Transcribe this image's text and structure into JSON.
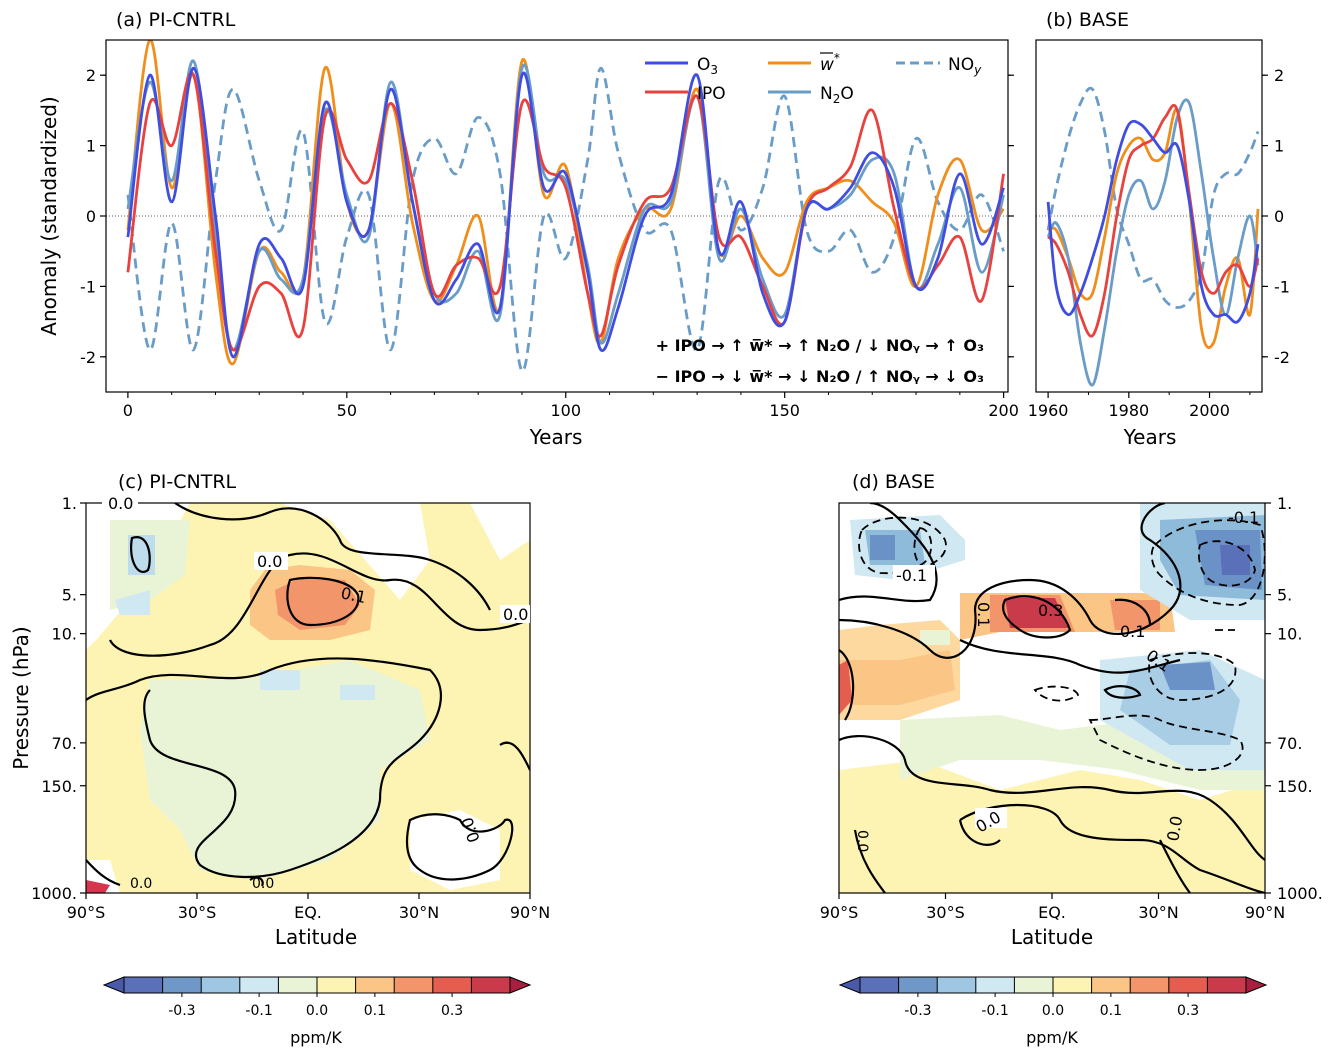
{
  "panels": {
    "a": {
      "label": "(a)  PI-CNTRL"
    },
    "b": {
      "label": "(b)  BASE"
    },
    "c": {
      "label": "(c)  PI-CNTRL"
    },
    "d": {
      "label": "(d)  BASE"
    }
  },
  "legend": {
    "o3": "O",
    "o3_sub": "3",
    "ipo": "IPO",
    "w": "w",
    "w_sup": "*",
    "n2o_a": "N",
    "n2o_sub": "2",
    "n2o_b": "O",
    "noy": "NO",
    "noy_sub": "y"
  },
  "annotation": {
    "line1": "+ IPO  →  ↑ w̅*  →  ↑ N₂O / ↓ NOᵧ  →  ↑ O₃",
    "line2": "− IPO  →  ↓ w̅*  →  ↓ N₂O / ↑ NOᵧ  →  ↓ O₃"
  },
  "colors": {
    "o3": "#3f4ee0",
    "ipo": "#e8423f",
    "w": "#f08e1c",
    "n2o": "#6a9cc8",
    "noy": "#6a9cc8"
  },
  "chart_data": [
    {
      "type": "line",
      "panel": "a",
      "title": "(a)  PI-CNTRL",
      "xlabel": "Years",
      "ylabel": "Anomaly (standardized)",
      "xlim": [
        -5,
        201
      ],
      "ylim": [
        -2.5,
        2.5
      ],
      "xticks": [
        0,
        50,
        100,
        150,
        200
      ],
      "yticks": [
        -2,
        -1,
        0,
        1,
        2
      ],
      "x": [
        0,
        5,
        10,
        15,
        20,
        24,
        30,
        35,
        40,
        45,
        50,
        55,
        60,
        65,
        70,
        75,
        80,
        85,
        90,
        95,
        100,
        105,
        108,
        112,
        118,
        124,
        130,
        135,
        140,
        145,
        150,
        155,
        160,
        165,
        170,
        175,
        180,
        185,
        190,
        195,
        200
      ],
      "series": [
        {
          "name": "O3",
          "values": [
            -0.3,
            2.0,
            0.2,
            2.1,
            0.0,
            -2.0,
            -0.4,
            -0.6,
            -1.0,
            1.6,
            0.2,
            -0.2,
            1.8,
            0.2,
            -1.2,
            -0.9,
            -0.4,
            -1.3,
            2.0,
            0.4,
            0.6,
            -0.8,
            -1.9,
            -1.3,
            0.0,
            0.3,
            2.0,
            -0.5,
            0.2,
            -1.1,
            -1.5,
            0.1,
            0.1,
            0.4,
            0.9,
            0.4,
            -1.0,
            -0.6,
            0.6,
            -0.4,
            0.4
          ]
        },
        {
          "name": "IPO",
          "values": [
            -0.8,
            1.6,
            1.0,
            2.0,
            -0.5,
            -1.9,
            -1.0,
            -1.1,
            -1.6,
            1.4,
            0.8,
            0.5,
            1.6,
            0.5,
            -1.1,
            -0.7,
            -0.6,
            -1.0,
            1.6,
            0.7,
            0.4,
            -1.1,
            -1.7,
            -0.7,
            0.2,
            0.4,
            1.7,
            -0.3,
            -0.3,
            -1.0,
            -1.5,
            0.1,
            0.4,
            0.7,
            1.5,
            0.1,
            -1.0,
            -0.7,
            -0.3,
            -1.2,
            0.6
          ]
        },
        {
          "name": "w*",
          "values": [
            -0.2,
            2.5,
            0.4,
            2.0,
            -0.8,
            -2.1,
            -0.5,
            -0.8,
            -0.9,
            2.1,
            0.2,
            -0.2,
            1.6,
            -0.1,
            -1.2,
            -0.7,
            0.0,
            -1.3,
            2.2,
            0.3,
            0.7,
            -1.1,
            -1.8,
            -0.6,
            0.1,
            0.1,
            1.8,
            -0.5,
            0.0,
            -0.6,
            -0.8,
            0.2,
            0.4,
            0.5,
            0.2,
            -0.1,
            -1.0,
            0.3,
            0.8,
            -0.2,
            0.1
          ]
        },
        {
          "name": "N2O",
          "values": [
            0.1,
            1.9,
            0.5,
            2.2,
            -0.2,
            -1.9,
            -0.5,
            -0.9,
            -0.9,
            1.5,
            0.3,
            -0.3,
            1.9,
            0.2,
            -1.1,
            -1.1,
            -0.5,
            -1.4,
            2.1,
            0.6,
            0.5,
            -0.7,
            -1.8,
            -1.1,
            0.1,
            0.2,
            1.7,
            -0.6,
            0.1,
            -0.9,
            -1.4,
            0.1,
            0.1,
            0.3,
            0.8,
            0.6,
            -1.0,
            -0.4,
            0.4,
            -0.8,
            0.3
          ]
        },
        {
          "name": "NOy",
          "values": [
            0.3,
            -1.9,
            -0.1,
            -1.9,
            0.5,
            1.8,
            0.5,
            -0.2,
            1.2,
            -1.5,
            -0.3,
            0.3,
            -1.9,
            0.5,
            1.1,
            0.6,
            1.4,
            0.6,
            -2.2,
            0.0,
            -0.6,
            0.8,
            2.1,
            0.9,
            -0.2,
            -0.2,
            -1.9,
            0.5,
            -0.2,
            0.4,
            1.7,
            -0.2,
            -0.5,
            -0.2,
            -0.8,
            -0.3,
            1.1,
            0.2,
            -0.2,
            0.3,
            -0.5
          ]
        }
      ]
    },
    {
      "type": "line",
      "panel": "b",
      "title": "(b)  BASE",
      "xlabel": "Years",
      "xlim": [
        1957,
        2013
      ],
      "ylim": [
        -2.5,
        2.5
      ],
      "xticks": [
        1960,
        1980,
        2000
      ],
      "yticks": [
        -2,
        -1,
        0,
        1,
        2
      ],
      "x": [
        1960,
        1962,
        1965,
        1968,
        1971,
        1974,
        1977,
        1980,
        1983,
        1986,
        1989,
        1992,
        1995,
        1998,
        2001,
        2004,
        2007,
        2010,
        2012
      ],
      "series": [
        {
          "name": "O3",
          "values": [
            0.2,
            -1.0,
            -1.4,
            -1.1,
            -0.6,
            0.0,
            0.8,
            1.3,
            1.3,
            1.1,
            0.9,
            1.0,
            0.2,
            -1.0,
            -1.4,
            -1.4,
            -1.5,
            -1.1,
            -0.4
          ]
        },
        {
          "name": "IPO",
          "values": [
            -0.3,
            -0.4,
            -0.8,
            -1.4,
            -1.7,
            -1.1,
            0.0,
            0.8,
            1.0,
            1.1,
            1.4,
            1.5,
            0.3,
            -0.8,
            -1.1,
            -0.8,
            -0.7,
            -1.0,
            -0.6
          ]
        },
        {
          "name": "w*",
          "values": [
            -0.2,
            -0.2,
            -0.6,
            -1.1,
            -1.1,
            -0.3,
            0.6,
            1.0,
            1.1,
            0.8,
            0.9,
            1.5,
            0.2,
            -1.6,
            -1.8,
            -1.0,
            -0.6,
            -1.4,
            0.1
          ]
        },
        {
          "name": "N2O",
          "values": [
            -0.3,
            -0.1,
            -0.6,
            -1.8,
            -2.4,
            -1.6,
            -0.5,
            0.3,
            0.5,
            0.1,
            0.5,
            1.4,
            1.6,
            0.6,
            -0.6,
            -1.4,
            -0.6,
            0.0,
            -0.7
          ]
        },
        {
          "name": "NOy",
          "values": [
            -0.2,
            0.4,
            1.1,
            1.6,
            1.8,
            1.2,
            0.1,
            -0.4,
            -0.9,
            -0.9,
            -1.2,
            -1.3,
            -1.2,
            -0.8,
            0.3,
            0.6,
            0.6,
            0.9,
            1.2
          ]
        }
      ]
    },
    {
      "type": "heatmap",
      "panel": "c",
      "title": "(c)  PI-CNTRL",
      "xlabel": "Latitude",
      "ylabel": "Pressure (hPa)",
      "xticklabels": [
        "90°S",
        "30°S",
        "EQ.",
        "30°N",
        "90°N"
      ],
      "yticklabels": [
        "1.",
        "5.",
        "10.",
        "70.",
        "150.",
        "1000."
      ],
      "contour_labels": [
        "0.0",
        "0.1",
        "0.0",
        "0.0",
        "0.0",
        "0.0"
      ],
      "colorbar": {
        "label": "ppm/K",
        "ticks": [
          "-0.3",
          "-0.1",
          "0.0",
          "0.1",
          "0.3"
        ]
      }
    },
    {
      "type": "heatmap",
      "panel": "d",
      "title": "(d)  BASE",
      "xlabel": "Latitude",
      "xticklabels": [
        "90°S",
        "30°S",
        "EQ.",
        "30°N",
        "90°N"
      ],
      "yticklabels": [
        "1.",
        "5.",
        "10.",
        "70.",
        "150.",
        "1000."
      ],
      "contour_labels": [
        "-0.1",
        "-0.1",
        "0.1",
        "0.3",
        "0.1",
        "0.1",
        "0.0",
        "0.0",
        "0.0"
      ],
      "colorbar": {
        "label": "ppm/K",
        "ticks": [
          "-0.3",
          "-0.1",
          "0.0",
          "0.1",
          "0.3"
        ]
      }
    }
  ]
}
